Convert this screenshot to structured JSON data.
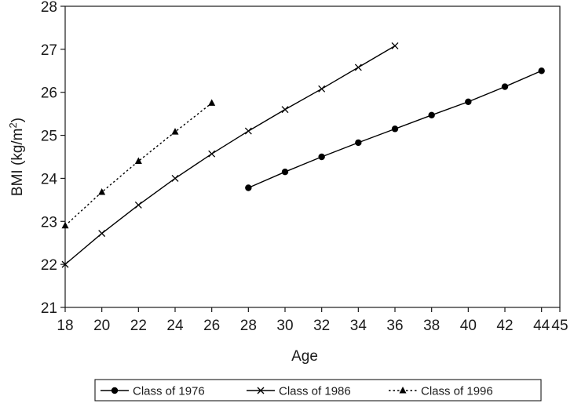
{
  "chart_data": {
    "type": "line",
    "xlabel": "Age",
    "ylabel": "BMI (kg/m",
    "ylabel_sup": "2",
    "ylabel_end": ")",
    "xlim": [
      18,
      45
    ],
    "ylim": [
      21,
      28
    ],
    "xticks": [
      "18",
      "20",
      "22",
      "24",
      "26",
      "28",
      "30",
      "32",
      "34",
      "36",
      "38",
      "40",
      "42",
      "44",
      "45"
    ],
    "yticks": [
      "21",
      "22",
      "23",
      "24",
      "25",
      "26",
      "27",
      "28"
    ],
    "grid": false,
    "legend_position": "bottom",
    "series": [
      {
        "name": "Class of 1976",
        "marker": "circle",
        "line": "solid",
        "color": "#000000",
        "points": [
          {
            "x": 28,
            "y": 23.78
          },
          {
            "x": 30,
            "y": 24.15
          },
          {
            "x": 32,
            "y": 24.5
          },
          {
            "x": 34,
            "y": 24.83
          },
          {
            "x": 36,
            "y": 25.15
          },
          {
            "x": 38,
            "y": 25.47
          },
          {
            "x": 40,
            "y": 25.78
          },
          {
            "x": 42,
            "y": 26.13
          },
          {
            "x": 44,
            "y": 26.5
          }
        ]
      },
      {
        "name": "Class of 1986",
        "marker": "x",
        "line": "solid",
        "color": "#000000",
        "points": [
          {
            "x": 18,
            "y": 22.0
          },
          {
            "x": 20,
            "y": 22.72
          },
          {
            "x": 22,
            "y": 23.38
          },
          {
            "x": 24,
            "y": 24.0
          },
          {
            "x": 26,
            "y": 24.57
          },
          {
            "x": 28,
            "y": 25.1
          },
          {
            "x": 30,
            "y": 25.6
          },
          {
            "x": 32,
            "y": 26.08
          },
          {
            "x": 34,
            "y": 26.58
          },
          {
            "x": 36,
            "y": 27.08
          }
        ]
      },
      {
        "name": "Class of 1996",
        "marker": "triangle",
        "line": "dotted",
        "color": "#000000",
        "points": [
          {
            "x": 18,
            "y": 22.9
          },
          {
            "x": 20,
            "y": 23.68
          },
          {
            "x": 22,
            "y": 24.4
          },
          {
            "x": 24,
            "y": 25.08
          },
          {
            "x": 26,
            "y": 25.75
          }
        ]
      }
    ]
  }
}
